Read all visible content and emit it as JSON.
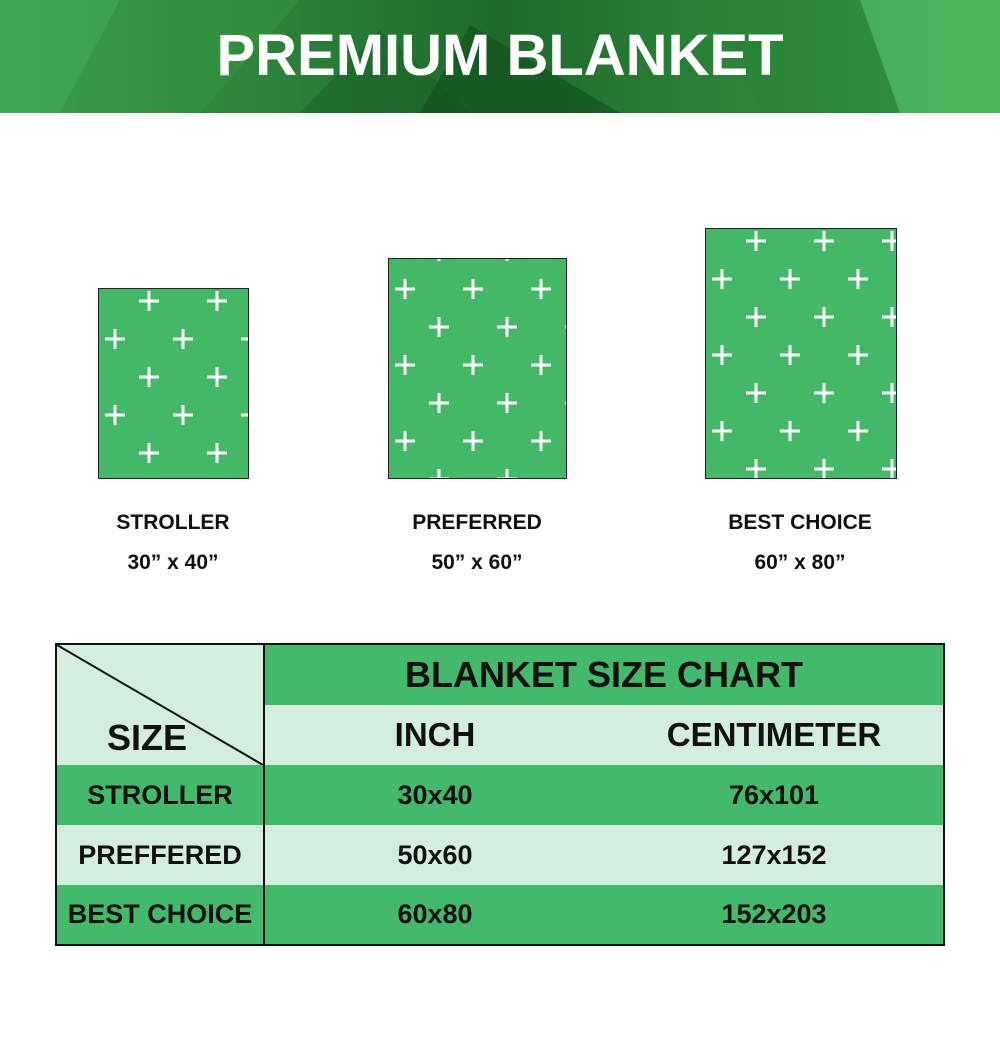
{
  "banner": {
    "title": "PREMIUM BLANKET"
  },
  "colors": {
    "brand_green": "#43b96b",
    "light_green": "#d3eedd",
    "banner_dark": "#1f6a2b",
    "pattern": "white cross"
  },
  "blankets": [
    {
      "name": "STROLLER",
      "size": "30” x 40”"
    },
    {
      "name": "PREFERRED",
      "size": "50” x 60”"
    },
    {
      "name": "BEST CHOICE",
      "size": "60” x 80”"
    }
  ],
  "table": {
    "title": "BLANKET SIZE CHART",
    "corner_label": "SIZE",
    "columns": [
      "INCH",
      "CENTIMETER"
    ],
    "rows": [
      {
        "name": "STROLLER",
        "inch": "30x40",
        "cm": "76x101"
      },
      {
        "name": "PREFFERED",
        "inch": "50x60",
        "cm": "127x152"
      },
      {
        "name": "BEST CHOICE",
        "inch": "60x80",
        "cm": "152x203"
      }
    ]
  }
}
